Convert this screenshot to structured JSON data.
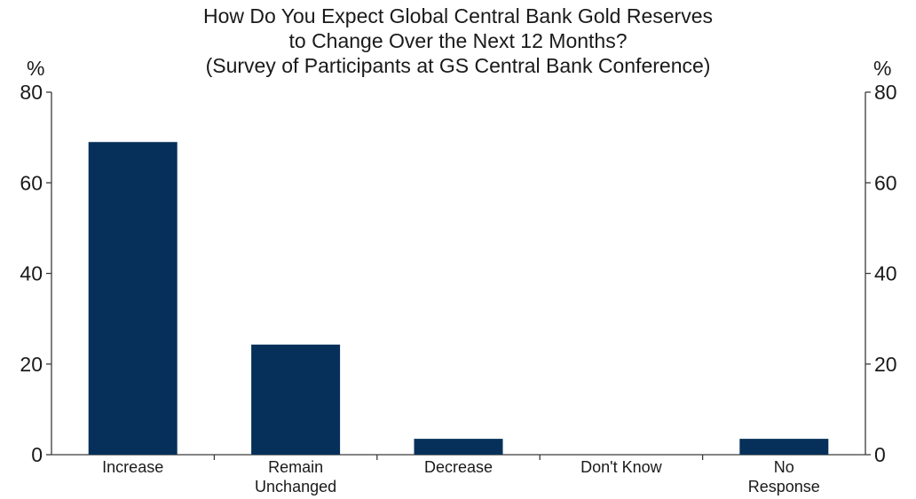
{
  "chart_data": {
    "type": "bar",
    "title_lines": [
      "How Do You Expect Global Central Bank Gold Reserves",
      "to Change Over the Next 12 Months?",
      "(Survey of Participants at GS Central Bank Conference)"
    ],
    "y_unit_left": "%",
    "y_unit_right": "%",
    "categories": [
      [
        "Increase"
      ],
      [
        "Remain",
        "Unchanged"
      ],
      [
        "Decrease"
      ],
      [
        "Don't Know"
      ],
      [
        "No",
        "Response"
      ]
    ],
    "values": [
      69,
      24.3,
      3.5,
      0,
      3.5
    ],
    "ylim": [
      0,
      80
    ],
    "yticks": [
      0,
      20,
      40,
      60,
      80
    ],
    "bar_color": "#06305a",
    "grid": false,
    "legend": "none"
  }
}
